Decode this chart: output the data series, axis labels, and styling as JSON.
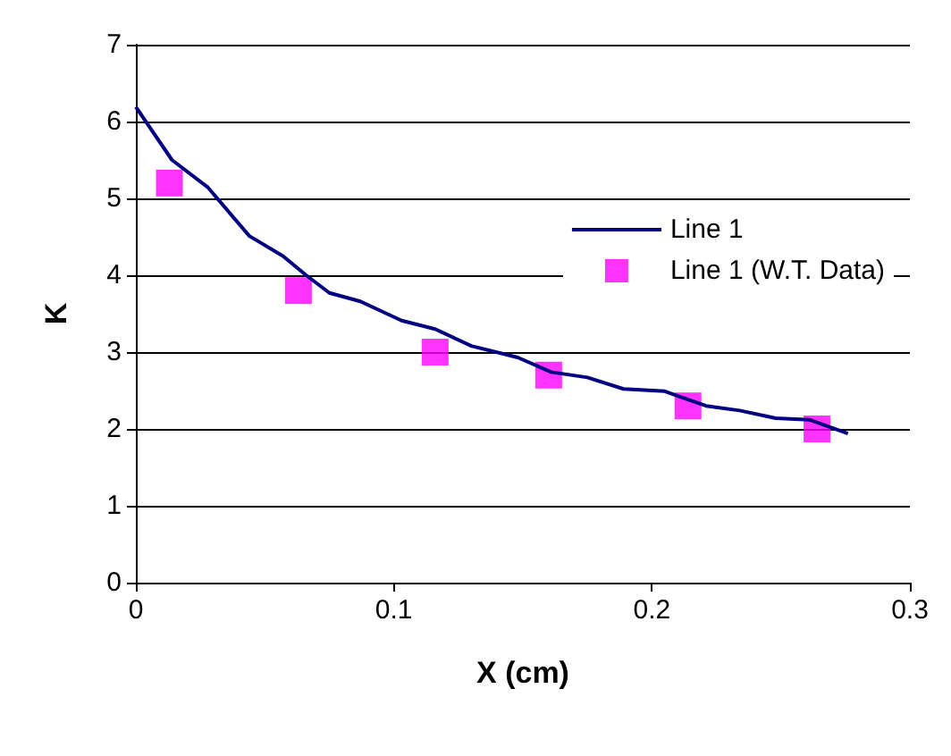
{
  "chart_data": {
    "type": "line",
    "xlabel": "X (cm)",
    "ylabel": "K",
    "xlim": [
      0,
      0.3
    ],
    "xticks": [
      0,
      0.1,
      0.2,
      0.3
    ],
    "ylim": [
      0,
      7
    ],
    "yticks": [
      0,
      1,
      2,
      3,
      4,
      5,
      6,
      7
    ],
    "grid": "y",
    "legend": "right",
    "series": [
      {
        "name": "Line 1",
        "color": "#000080",
        "marker": "none",
        "line_style": "solid",
        "x": [
          0,
          0.014,
          0.028,
          0.044,
          0.057,
          0.066,
          0.075,
          0.087,
          0.103,
          0.116,
          0.13,
          0.148,
          0.161,
          0.175,
          0.189,
          0.205,
          0.221,
          0.234,
          0.248,
          0.261,
          0.276
        ],
        "values": [
          6.19,
          5.5,
          5.14,
          4.51,
          4.25,
          4.0,
          3.77,
          3.66,
          3.41,
          3.3,
          3.08,
          2.93,
          2.74,
          2.67,
          2.52,
          2.49,
          2.3,
          2.24,
          2.14,
          2.12,
          1.94
        ]
      },
      {
        "name": "Line 1 (W.T. Data)",
        "type": "scatter",
        "color": "#ff00ff",
        "marker": "square",
        "x": [
          0.013,
          0.063,
          0.116,
          0.16,
          0.214,
          0.264
        ],
        "values": [
          5.2,
          3.8,
          3.0,
          2.7,
          2.3,
          2.0
        ]
      }
    ]
  }
}
